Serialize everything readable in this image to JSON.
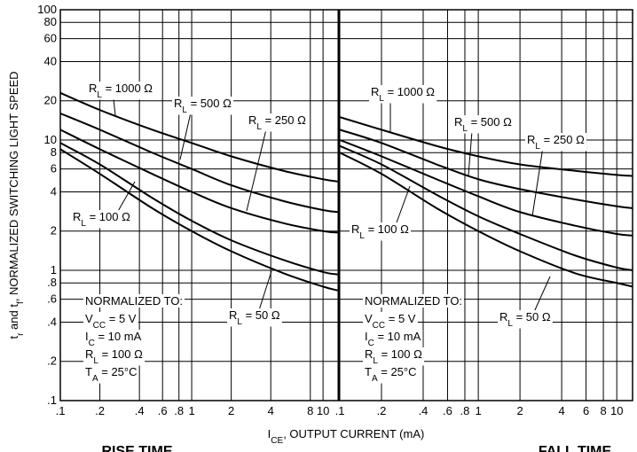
{
  "chart_data": [
    {
      "type": "line",
      "title": "RISE TIME",
      "xlabel": [
        "I",
        "CE",
        ", OUTPUT CURRENT (mA)"
      ],
      "ylabel": [
        "t",
        "r",
        " and t",
        "f",
        ", NORMALIZED SWITCHING LIGHT SPEED"
      ],
      "log_x": true,
      "log_y": true,
      "grid": true,
      "xlim": [
        0.1,
        13
      ],
      "ylim": [
        0.1,
        100
      ],
      "xticks": [
        {
          "value": 0.1,
          "label": ".1"
        },
        {
          "value": 0.2,
          "label": ".2"
        },
        {
          "value": 0.4,
          "label": ".4"
        },
        {
          "value": 0.6,
          "label": ".6"
        },
        {
          "value": 0.8,
          "label": ".8"
        },
        1,
        2,
        4,
        8,
        10
      ],
      "yticks": [
        {
          "value": 0.1,
          "label": ".1"
        },
        {
          "value": 0.2,
          "label": ".2"
        },
        {
          "value": 0.4,
          "label": ".4"
        },
        {
          "value": 0.6,
          "label": ".6"
        },
        {
          "value": 0.8,
          "label": ".8"
        },
        1,
        2,
        4,
        6,
        8,
        10,
        20,
        40,
        60,
        80,
        100
      ],
      "x": [
        0.1,
        0.2,
        0.5,
        1,
        2,
        5,
        10,
        13
      ],
      "series": [
        {
          "name": [
            "R",
            "L",
            " = 1000 Ω"
          ],
          "color": "#000000",
          "values": [
            23,
            17,
            12,
            9.5,
            7.5,
            5.8,
            5,
            4.8
          ]
        },
        {
          "name": [
            "R",
            "L",
            " = 500 Ω"
          ],
          "color": "#000000",
          "values": [
            16,
            12,
            8,
            6,
            4.5,
            3.4,
            2.9,
            2.8
          ]
        },
        {
          "name": [
            "R",
            "L",
            " = 250 Ω"
          ],
          "color": "#000000",
          "values": [
            12,
            8.5,
            5.5,
            4,
            3,
            2.3,
            2,
            1.95
          ]
        },
        {
          "name": [
            "R",
            "L",
            " = 100 Ω"
          ],
          "color": "#000000",
          "values": [
            9.5,
            6.5,
            3.6,
            2.4,
            1.7,
            1.2,
            0.97,
            0.93
          ]
        },
        {
          "name": [
            "R",
            "L",
            " = 50 Ω"
          ],
          "color": "#000000",
          "values": [
            8.5,
            5.5,
            3,
            2,
            1.4,
            0.95,
            0.75,
            0.7
          ]
        }
      ],
      "note": [
        [
          "NORMALIZED TO:"
        ],
        [
          "V",
          "CC",
          " = 5 V"
        ],
        [
          "I",
          "C",
          " = 10 mA"
        ],
        [
          "R",
          "L",
          " = 100 Ω"
        ],
        [
          "T",
          "A",
          " = 25°C"
        ]
      ]
    },
    {
      "type": "line",
      "title": "FALL TIME",
      "log_x": true,
      "log_y": true,
      "grid": true,
      "xlim": [
        0.1,
        13
      ],
      "ylim": [
        0.1,
        100
      ],
      "xticks": [
        {
          "value": 0.1,
          "label": ".1"
        },
        {
          "value": 0.2,
          "label": ".2"
        },
        {
          "value": 0.4,
          "label": ".4"
        },
        {
          "value": 0.6,
          "label": ".6"
        },
        {
          "value": 0.8,
          "label": ".8"
        },
        1,
        2,
        4,
        6,
        8,
        10
      ],
      "x": [
        0.1,
        0.2,
        0.5,
        1,
        2,
        5,
        10,
        13
      ],
      "series": [
        {
          "name": [
            "R",
            "L",
            " = 1000 Ω"
          ],
          "color": "#000000",
          "values": [
            15,
            12,
            9,
            7.5,
            6.5,
            5.8,
            5.4,
            5.3
          ]
        },
        {
          "name": [
            "R",
            "L",
            " = 500 Ω"
          ],
          "color": "#000000",
          "values": [
            12,
            9.5,
            6.5,
            5,
            4.2,
            3.5,
            3.1,
            3
          ]
        },
        {
          "name": [
            "R",
            "L",
            " = 250 Ω"
          ],
          "color": "#000000",
          "values": [
            10,
            7.5,
            5,
            3.7,
            2.8,
            2.2,
            1.9,
            1.85
          ]
        },
        {
          "name": [
            "R",
            "L",
            " = 100 Ω"
          ],
          "color": "#000000",
          "values": [
            9,
            6.5,
            3.8,
            2.6,
            1.9,
            1.3,
            1.05,
            1
          ]
        },
        {
          "name": [
            "R",
            "L",
            " = 50 Ω"
          ],
          "color": "#000000",
          "values": [
            8,
            5.5,
            3,
            2,
            1.4,
            0.95,
            0.8,
            0.75
          ]
        }
      ],
      "note": [
        [
          "NORMALIZED TO:"
        ],
        [
          "V",
          "CC",
          " = 5 V"
        ],
        [
          "I",
          "C",
          " = 10 mA"
        ],
        [
          "R",
          "L",
          " = 100 Ω"
        ],
        [
          "T",
          "A",
          " = 25°C"
        ]
      ]
    }
  ]
}
